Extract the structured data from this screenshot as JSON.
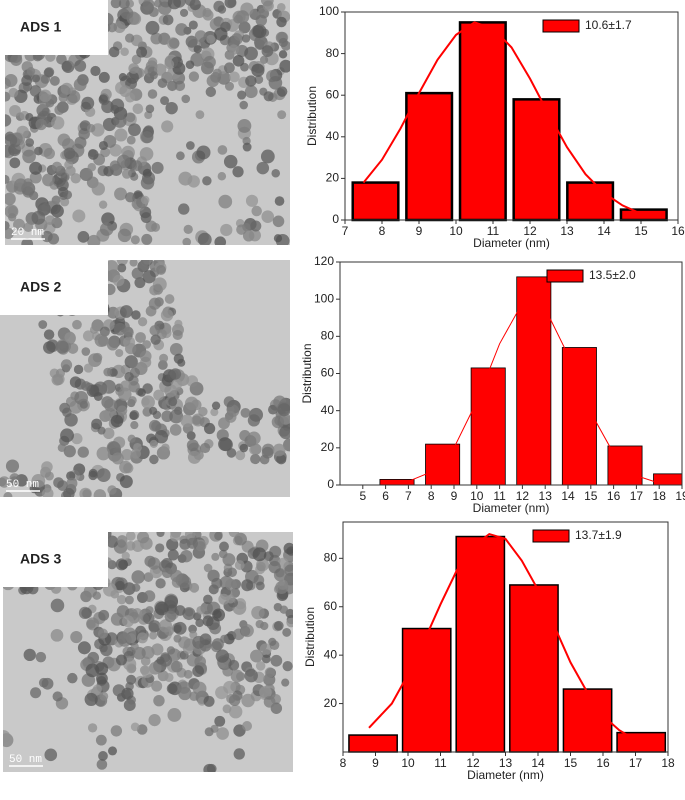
{
  "panels": [
    {
      "label": "ADS 1",
      "scale_bar": "20 nm"
    },
    {
      "label": "ADS 2",
      "scale_bar": "50 nm"
    },
    {
      "label": "ADS 3",
      "scale_bar": "50 nm"
    }
  ],
  "chart_data": [
    {
      "type": "histogram",
      "xlabel": "Diameter (nm)",
      "ylabel": "Distribution",
      "color": "#ff0000",
      "bins": [
        7.1,
        8.55,
        10.0,
        11.45,
        12.9,
        14.35,
        15.8
      ],
      "values": [
        18,
        61,
        95,
        58,
        18,
        5
      ],
      "xlim": [
        7,
        16
      ],
      "xticks": [
        7,
        8,
        9,
        10,
        11,
        12,
        13,
        14,
        15,
        16
      ],
      "ylim": [
        0,
        100
      ],
      "yticks": [
        0,
        20,
        40,
        60,
        80,
        100
      ],
      "fit": {
        "name": "10.6±1.7",
        "color": "#ff0000",
        "x": [
          7.5,
          8,
          8.5,
          9,
          9.5,
          10,
          10.5,
          11,
          11.5,
          12,
          12.5,
          13,
          13.5,
          14,
          14.5,
          15,
          15.5
        ],
        "values": [
          18,
          29,
          44,
          61,
          77,
          89,
          95,
          92,
          83,
          68,
          51,
          35,
          22,
          13,
          7,
          3,
          2
        ]
      },
      "legend": "upper right"
    },
    {
      "type": "histogram",
      "xlabel": "Diameter (nm)",
      "ylabel": "Distribution",
      "color": "#ff0000",
      "bins": [
        5.5,
        7.5,
        9.5,
        11.5,
        13.5,
        15.5,
        17.5,
        19.5
      ],
      "values": [
        3,
        22,
        63,
        112,
        74,
        21,
        6
      ],
      "xlim": [
        4,
        19
      ],
      "xticks": [
        5,
        6,
        7,
        8,
        9,
        10,
        11,
        12,
        13,
        14,
        15,
        16,
        17,
        18,
        19
      ],
      "ylim": [
        0,
        120
      ],
      "yticks": [
        0,
        20,
        40,
        60,
        80,
        100,
        120
      ],
      "fit": {
        "name": "13.5±2.0",
        "color": "#ff0000",
        "x": [
          6,
          7,
          8,
          9,
          10,
          11,
          12,
          12.5,
          13,
          14,
          15,
          16,
          17,
          18
        ],
        "values": [
          0.3,
          2,
          7,
          20,
          45,
          76,
          98,
          100,
          95,
          70,
          39,
          17,
          5,
          1
        ]
      },
      "legend": "upper right"
    },
    {
      "type": "histogram",
      "xlabel": "Diameter (nm)",
      "ylabel": "Distribution",
      "color": "#ff0000",
      "bins": [
        8.1,
        9.75,
        11.4,
        13.05,
        14.7,
        16.35,
        18.0
      ],
      "values": [
        7,
        51,
        89,
        69,
        26,
        8
      ],
      "xlim": [
        8,
        18
      ],
      "xticks": [
        8,
        9,
        10,
        11,
        12,
        13,
        14,
        15,
        16,
        17,
        18
      ],
      "ylim": [
        0,
        95
      ],
      "yticks": [
        20,
        40,
        60,
        80
      ],
      "fit": {
        "name": "13.7±1.9",
        "color": "#ff0000",
        "x": [
          8.8,
          9.5,
          10,
          10.5,
          11,
          11.5,
          12,
          12.5,
          13,
          13.5,
          14,
          14.5,
          15,
          15.5,
          16,
          16.5,
          17
        ],
        "values": [
          10,
          20,
          32,
          46,
          61,
          75,
          85,
          90,
          88,
          79,
          67,
          52,
          37,
          25,
          15,
          9,
          5
        ]
      },
      "legend": "upper right"
    }
  ]
}
